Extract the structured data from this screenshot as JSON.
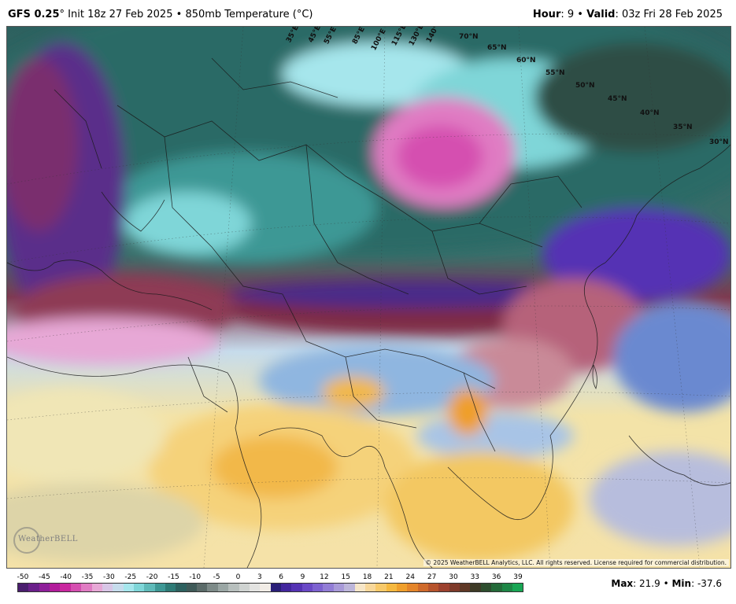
{
  "header": {
    "model": "GFS 0.25",
    "init": "Init 18z 27 Feb 2025",
    "bullet": "•",
    "field": "850mb Temperature (°C)",
    "hour_label": "Hour",
    "hour_value": "9",
    "valid_label": "Valid",
    "valid_value": "03z Fri 28 Feb 2025"
  },
  "map": {
    "copyright": "© 2025 WeatherBELL Analytics, LLC. All rights reserved. License required for commercial distribution.",
    "logo_text": "WeatherBELL",
    "lat_labels": [
      "70°N",
      "65°N",
      "60°N",
      "55°N",
      "50°N",
      "45°N",
      "40°N",
      "35°N",
      "30°N"
    ],
    "lon_labels": [
      "35°E",
      "45°E",
      "55°E",
      "85°E",
      "100°E",
      "115°E",
      "130°E",
      "140°E"
    ]
  },
  "legend": {
    "ticks": [
      "-50",
      "-45",
      "-40",
      "-35",
      "-30",
      "-25",
      "-20",
      "-15",
      "-10",
      "-5",
      "0",
      "3",
      "6",
      "9",
      "12",
      "15",
      "18",
      "21",
      "24",
      "27",
      "30",
      "33",
      "36",
      "39"
    ],
    "colors": [
      "#4a1e6e",
      "#6a1f8a",
      "#8e1f9a",
      "#b21c9b",
      "#c9289f",
      "#d54fb0",
      "#e07cc3",
      "#e7a8d6",
      "#d8c6e6",
      "#c6dcec",
      "#a6e6ec",
      "#7fd6d8",
      "#5fbab9",
      "#3e9895",
      "#2e7b76",
      "#2d615f",
      "#3f5a58",
      "#5b6b69",
      "#7d8a88",
      "#9aa6a4",
      "#b7bfbd",
      "#cfd3d1",
      "#e3e3e1",
      "#f1ece6",
      "#2a1f78",
      "#43279e",
      "#5533b4",
      "#6a49c6",
      "#7d62d0",
      "#927dd6",
      "#a89ad8",
      "#bdb6da",
      "#f6e6c8",
      "#f7d79a",
      "#f7c96a",
      "#f5b83f",
      "#ef9f2c",
      "#e4852a",
      "#cf6a2b",
      "#b6532c",
      "#9c412e",
      "#7e3a2a",
      "#5f3826",
      "#3d3a26",
      "#2d4d2e",
      "#246a39",
      "#1d8646",
      "#18a654"
    ],
    "ticks_colors_note": ""
  },
  "stats": {
    "max_label": "Max",
    "max_value": "21.9",
    "min_label": "Min",
    "min_value": "-37.6",
    "separator": "•"
  }
}
